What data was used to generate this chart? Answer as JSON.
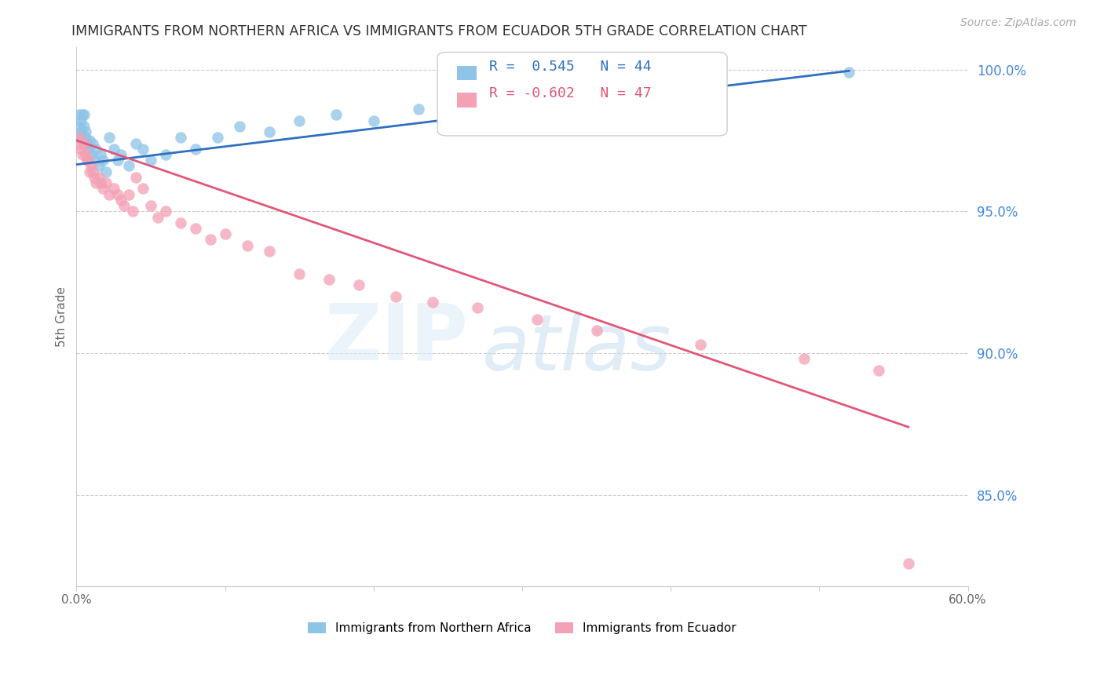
{
  "title": "IMMIGRANTS FROM NORTHERN AFRICA VS IMMIGRANTS FROM ECUADOR 5TH GRADE CORRELATION CHART",
  "source": "Source: ZipAtlas.com",
  "ylabel": "5th Grade",
  "xlim": [
    0.0,
    0.6
  ],
  "ylim": [
    0.818,
    1.008
  ],
  "xticks": [
    0.0,
    0.1,
    0.2,
    0.3,
    0.4,
    0.5,
    0.6
  ],
  "xticklabels": [
    "0.0%",
    "",
    "",
    "",
    "",
    "",
    "60.0%"
  ],
  "yticks_right": [
    0.85,
    0.9,
    0.95,
    1.0
  ],
  "ytick_right_labels": [
    "85.0%",
    "90.0%",
    "95.0%",
    "100.0%"
  ],
  "blue_color": "#8ec4e8",
  "pink_color": "#f4a0b5",
  "blue_line_color": "#3070c0",
  "pink_line_color": "#e05878",
  "right_axis_color": "#4488dd",
  "legend_label_blue": "Immigrants from Northern Africa",
  "legend_label_pink": "Immigrants from Ecuador",
  "watermark_zip": "ZIP",
  "watermark_atlas": "atlas",
  "blue_scatter_x": [
    0.001,
    0.002,
    0.002,
    0.003,
    0.003,
    0.004,
    0.004,
    0.005,
    0.005,
    0.006,
    0.006,
    0.007,
    0.008,
    0.009,
    0.01,
    0.011,
    0.012,
    0.013,
    0.015,
    0.016,
    0.018,
    0.02,
    0.022,
    0.025,
    0.028,
    0.03,
    0.035,
    0.04,
    0.045,
    0.05,
    0.06,
    0.07,
    0.08,
    0.095,
    0.11,
    0.13,
    0.15,
    0.175,
    0.2,
    0.23,
    0.26,
    0.3,
    0.34,
    0.52
  ],
  "blue_scatter_y": [
    0.976,
    0.98,
    0.984,
    0.978,
    0.982,
    0.976,
    0.984,
    0.98,
    0.984,
    0.978,
    0.976,
    0.974,
    0.972,
    0.975,
    0.97,
    0.974,
    0.968,
    0.972,
    0.966,
    0.97,
    0.968,
    0.964,
    0.976,
    0.972,
    0.968,
    0.97,
    0.966,
    0.974,
    0.972,
    0.968,
    0.97,
    0.976,
    0.972,
    0.976,
    0.98,
    0.978,
    0.982,
    0.984,
    0.982,
    0.986,
    0.99,
    0.992,
    0.994,
    0.999
  ],
  "pink_scatter_x": [
    0.001,
    0.002,
    0.003,
    0.004,
    0.005,
    0.006,
    0.007,
    0.008,
    0.009,
    0.01,
    0.011,
    0.012,
    0.013,
    0.015,
    0.016,
    0.018,
    0.02,
    0.022,
    0.025,
    0.028,
    0.03,
    0.032,
    0.035,
    0.038,
    0.04,
    0.045,
    0.05,
    0.055,
    0.06,
    0.07,
    0.08,
    0.09,
    0.1,
    0.115,
    0.13,
    0.15,
    0.17,
    0.19,
    0.215,
    0.24,
    0.27,
    0.31,
    0.35,
    0.42,
    0.49,
    0.54,
    0.56
  ],
  "pink_scatter_y": [
    0.974,
    0.976,
    0.972,
    0.97,
    0.974,
    0.97,
    0.968,
    0.968,
    0.964,
    0.966,
    0.964,
    0.962,
    0.96,
    0.962,
    0.96,
    0.958,
    0.96,
    0.956,
    0.958,
    0.956,
    0.954,
    0.952,
    0.956,
    0.95,
    0.962,
    0.958,
    0.952,
    0.948,
    0.95,
    0.946,
    0.944,
    0.94,
    0.942,
    0.938,
    0.936,
    0.928,
    0.926,
    0.924,
    0.92,
    0.918,
    0.916,
    0.912,
    0.908,
    0.903,
    0.898,
    0.894,
    0.826
  ],
  "blue_line_x": [
    0.0,
    0.52
  ],
  "blue_line_y": [
    0.9665,
    0.9995
  ],
  "pink_line_x": [
    0.0,
    0.56
  ],
  "pink_line_y": [
    0.975,
    0.874
  ]
}
